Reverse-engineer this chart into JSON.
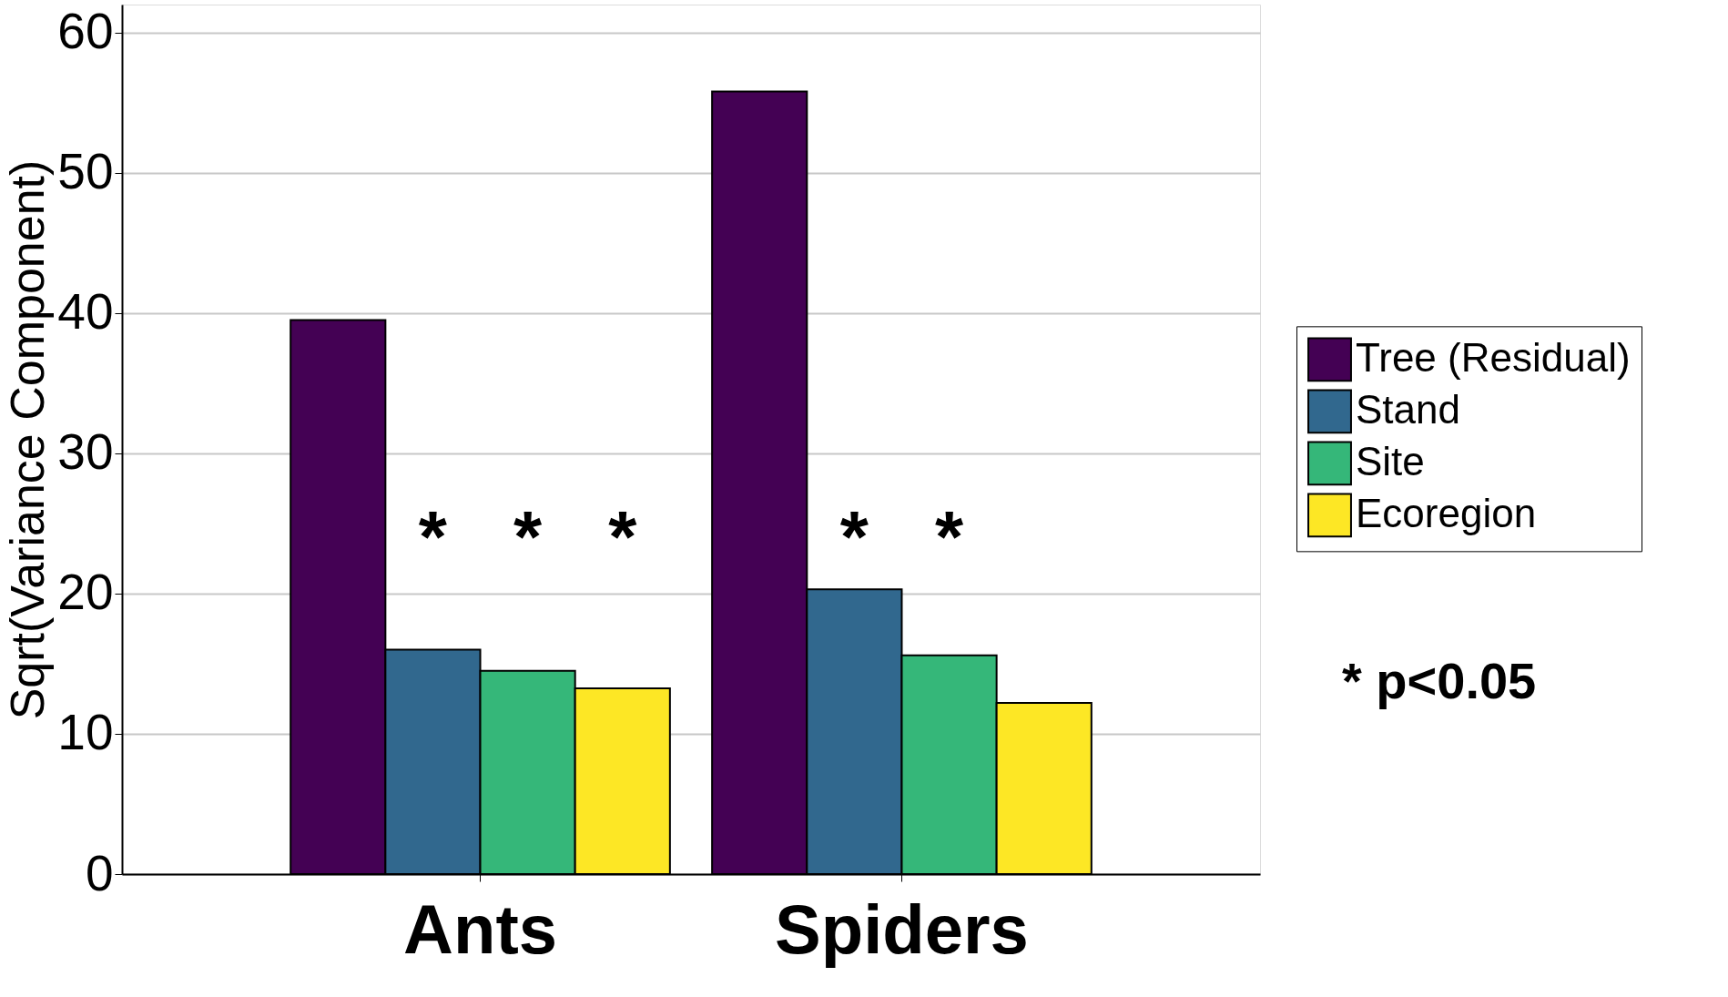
{
  "chart_data": {
    "type": "bar",
    "ylabel": "Sqrt(Variance Component)",
    "categories": [
      "Ants",
      "Spiders"
    ],
    "series": [
      {
        "name": "Tree (Residual)",
        "color": "#440154",
        "values": [
          39.5,
          55.8
        ]
      },
      {
        "name": "Stand",
        "color": "#31688e",
        "values": [
          16.0,
          20.3
        ]
      },
      {
        "name": "Site",
        "color": "#35b779",
        "values": [
          14.5,
          15.6
        ]
      },
      {
        "name": "Ecoregion",
        "color": "#fde725",
        "values": [
          13.25,
          12.2
        ]
      }
    ],
    "ylim": [
      0,
      62
    ],
    "yticks": [
      0,
      10,
      20,
      30,
      40,
      50,
      60
    ],
    "grid": "y",
    "legend": "right",
    "annotations": [
      "*",
      "*",
      "*",
      "*",
      "*",
      "* p<0.05"
    ]
  }
}
